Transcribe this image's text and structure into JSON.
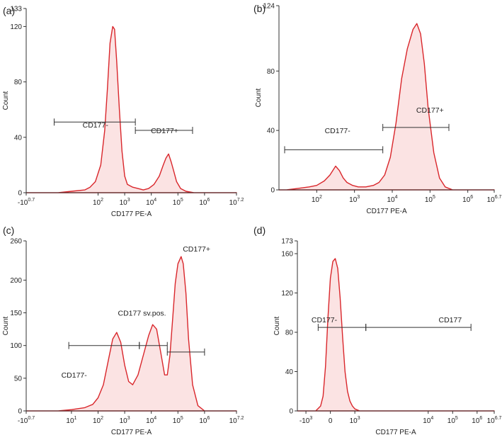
{
  "chart_data": [
    {
      "type": "histogram",
      "panel_label": "(a)",
      "xlabel": "CD177 PE-A",
      "ylabel": "Count",
      "ylim": [
        0,
        133
      ],
      "xlim_log10": [
        -0.7,
        7.2
      ],
      "yticks": [
        {
          "v": 0,
          "label": "0"
        },
        {
          "v": 40,
          "label": "40"
        },
        {
          "v": 80,
          "label": "80"
        },
        {
          "v": 120,
          "label": "120"
        },
        {
          "v": 133,
          "label": "133"
        }
      ],
      "xticks": [
        {
          "v": -0.7,
          "sup": "-10",
          "exp": "0.7"
        },
        {
          "v": 2,
          "sup": "10",
          "exp": "2"
        },
        {
          "v": 3,
          "sup": "10",
          "exp": "3"
        },
        {
          "v": 4,
          "sup": "10",
          "exp": "4"
        },
        {
          "v": 5,
          "sup": "10",
          "exp": "5"
        },
        {
          "v": 6,
          "sup": "10",
          "exp": "6"
        },
        {
          "v": 7.2,
          "sup": "10",
          "exp": "7.2"
        }
      ],
      "histogram": {
        "x_log10": [
          -0.7,
          0.5,
          1.0,
          1.5,
          1.7,
          1.9,
          2.1,
          2.25,
          2.35,
          2.45,
          2.55,
          2.62,
          2.7,
          2.8,
          2.9,
          3.0,
          3.1,
          3.3,
          3.5,
          3.7,
          3.9,
          4.1,
          4.3,
          4.45,
          4.55,
          4.65,
          4.75,
          4.85,
          4.95,
          5.1,
          5.3,
          5.6,
          7.2
        ],
        "counts": [
          0,
          0,
          1,
          2,
          4,
          8,
          20,
          45,
          75,
          108,
          120,
          118,
          95,
          60,
          30,
          12,
          6,
          4,
          3,
          2,
          3,
          6,
          12,
          20,
          25,
          28,
          22,
          15,
          8,
          3,
          1,
          0,
          0
        ]
      },
      "gates": [
        {
          "name": "CD177-",
          "from_log10": 0.35,
          "to_log10": 3.4,
          "y": 51,
          "label_at_log10": 1.9,
          "label_y": 49,
          "label_size": 11
        },
        {
          "name": "CD177+",
          "from_log10": 3.4,
          "to_log10": 5.55,
          "y": 45,
          "label_at_log10": 4.5,
          "label_y": 45,
          "label_size": 11
        }
      ]
    },
    {
      "type": "histogram",
      "panel_label": "(b)",
      "xlabel": "CD177 PE-A",
      "ylabel": "Count",
      "ylim": [
        0,
        124
      ],
      "xlim_log10": [
        1,
        6.7
      ],
      "yticks": [
        {
          "v": 0,
          "label": "0"
        },
        {
          "v": 40,
          "label": "40"
        },
        {
          "v": 80,
          "label": "80"
        },
        {
          "v": 124,
          "label": "124"
        }
      ],
      "xticks": [
        {
          "v": 2,
          "sup": "10",
          "exp": "2"
        },
        {
          "v": 3,
          "sup": "10",
          "exp": "3"
        },
        {
          "v": 4,
          "sup": "10",
          "exp": "4"
        },
        {
          "v": 5,
          "sup": "10",
          "exp": "5"
        },
        {
          "v": 6,
          "sup": "10",
          "exp": "6"
        },
        {
          "v": 6.7,
          "sup": "10",
          "exp": "6.7"
        }
      ],
      "histogram": {
        "x_log10": [
          1.0,
          1.2,
          1.5,
          1.8,
          2.0,
          2.2,
          2.35,
          2.5,
          2.6,
          2.7,
          2.8,
          2.95,
          3.1,
          3.3,
          3.5,
          3.65,
          3.8,
          3.95,
          4.1,
          4.25,
          4.4,
          4.55,
          4.65,
          4.75,
          4.85,
          4.95,
          5.1,
          5.25,
          5.4,
          5.6,
          6.7
        ],
        "counts": [
          0,
          0,
          1,
          2,
          3,
          6,
          10,
          16,
          13,
          8,
          5,
          3,
          2,
          2,
          3,
          5,
          10,
          22,
          45,
          75,
          95,
          108,
          112,
          105,
          85,
          55,
          25,
          8,
          2,
          0,
          0
        ]
      },
      "gates": [
        {
          "name": "CD177-",
          "from_log10": 1.15,
          "to_log10": 3.75,
          "y": 27,
          "label_at_log10": 2.55,
          "label_y": 40,
          "label_size": 9.5
        },
        {
          "name": "CD177+",
          "from_log10": 3.75,
          "to_log10": 5.5,
          "y": 42,
          "label_at_log10": 5.0,
          "label_y": 54,
          "label_size": 9.5
        }
      ]
    },
    {
      "type": "histogram",
      "panel_label": "(c)",
      "xlabel": "CD177 PE-A",
      "ylabel": "Count",
      "ylim": [
        0,
        260
      ],
      "xlim_log10": [
        -0.7,
        7.2
      ],
      "yticks": [
        {
          "v": 0,
          "label": "0"
        },
        {
          "v": 50,
          "label": "50"
        },
        {
          "v": 100,
          "label": "100"
        },
        {
          "v": 150,
          "label": "150"
        },
        {
          "v": 200,
          "label": "200"
        },
        {
          "v": 260,
          "label": "260"
        }
      ],
      "xticks": [
        {
          "v": -0.7,
          "sup": "-10",
          "exp": "0.7"
        },
        {
          "v": 1,
          "sup": "10",
          "exp": "1"
        },
        {
          "v": 2,
          "sup": "10",
          "exp": "2"
        },
        {
          "v": 3,
          "sup": "10",
          "exp": "3"
        },
        {
          "v": 4,
          "sup": "10",
          "exp": "4"
        },
        {
          "v": 5,
          "sup": "10",
          "exp": "5"
        },
        {
          "v": 6,
          "sup": "10",
          "exp": "6"
        },
        {
          "v": 7.2,
          "sup": "10",
          "exp": "7.2"
        }
      ],
      "histogram": {
        "x_log10": [
          -0.7,
          0.5,
          1.0,
          1.5,
          1.8,
          2.0,
          2.2,
          2.4,
          2.55,
          2.7,
          2.85,
          3.0,
          3.15,
          3.3,
          3.5,
          3.7,
          3.9,
          4.05,
          4.2,
          4.35,
          4.5,
          4.6,
          4.7,
          4.8,
          4.9,
          5.0,
          5.12,
          5.2,
          5.3,
          5.4,
          5.55,
          5.75,
          6.0,
          7.2
        ],
        "counts": [
          0,
          0,
          2,
          5,
          10,
          20,
          40,
          80,
          110,
          120,
          105,
          70,
          45,
          40,
          55,
          85,
          115,
          132,
          125,
          90,
          55,
          55,
          85,
          140,
          195,
          225,
          236,
          225,
          180,
          110,
          40,
          8,
          0,
          0
        ]
      },
      "gates": [
        {
          "name": "CD177-",
          "from_log10": 0.9,
          "to_log10": 3.55,
          "y": 100,
          "label_at_log10": 1.1,
          "label_y": 55,
          "label_size": 9.5
        },
        {
          "name": "CD177 sv.pos.",
          "from_log10": 3.55,
          "to_log10": 4.6,
          "y": 100,
          "label_at_log10": 3.65,
          "label_y": 150,
          "label_size": 9.5
        },
        {
          "name": "CD177+",
          "from_log10": 4.6,
          "to_log10": 6.0,
          "y": 90,
          "label_at_log10": 5.7,
          "label_y": 248,
          "label_size": 9.5
        }
      ]
    },
    {
      "type": "histogram",
      "panel_label": "(d)",
      "xlabel": "CD177 PE-A",
      "ylabel": "Count",
      "ylim": [
        0,
        173
      ],
      "xlim_axis": [
        -1.35,
        6.7
      ],
      "yticks": [
        {
          "v": 0,
          "label": "0"
        },
        {
          "v": 40,
          "label": "40"
        },
        {
          "v": 80,
          "label": "80"
        },
        {
          "v": 120,
          "label": "120"
        },
        {
          "v": 160,
          "label": "160"
        },
        {
          "v": 173,
          "label": "173"
        }
      ],
      "xticks": [
        {
          "v": -1,
          "sup": "-10",
          "exp": "3"
        },
        {
          "v": 0,
          "text": "0"
        },
        {
          "v": 1,
          "sup": "10",
          "exp": "3"
        },
        {
          "v": 4,
          "sup": "10",
          "exp": "4"
        },
        {
          "v": 5,
          "sup": "10",
          "exp": "5"
        },
        {
          "v": 6,
          "sup": "10",
          "exp": "6"
        },
        {
          "v": 6.7,
          "sup": "10",
          "exp": "6.7"
        }
      ],
      "histogram": {
        "x_axis": [
          -1.35,
          -0.6,
          -0.4,
          -0.3,
          -0.2,
          -0.1,
          0.0,
          0.1,
          0.2,
          0.3,
          0.4,
          0.5,
          0.6,
          0.7,
          0.8,
          0.9,
          1.0,
          1.2,
          6.7
        ],
        "counts": [
          0,
          0,
          5,
          15,
          45,
          95,
          135,
          152,
          155,
          145,
          115,
          75,
          40,
          20,
          10,
          5,
          2,
          0,
          0
        ]
      },
      "gates": [
        {
          "name": "CD177-",
          "from_axis": -0.5,
          "to_axis": 1.45,
          "y": 85,
          "label_at_axis": -0.25,
          "label_y": 93,
          "label_size": 9.5
        },
        {
          "name": "CD177",
          "from_axis": 1.45,
          "to_axis": 5.75,
          "y": 85,
          "label_at_axis": 4.9,
          "label_y": 93,
          "label_size": 9.5
        }
      ]
    }
  ]
}
